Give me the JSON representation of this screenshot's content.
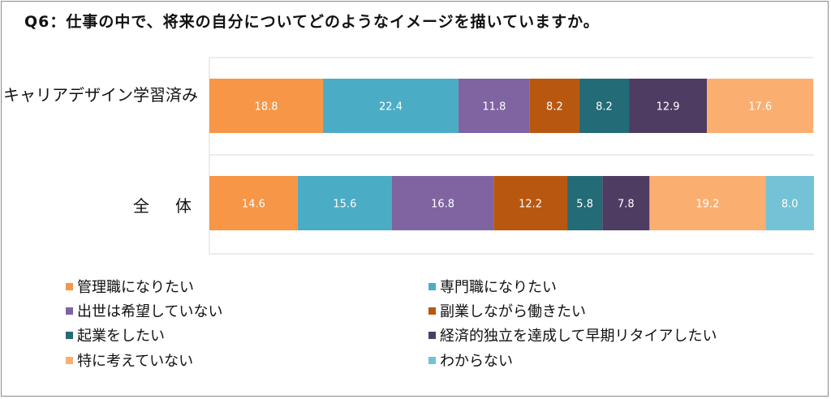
{
  "title": "Q6：仕事の中で、将来の自分についてどのようなイメージを描いていますか。",
  "chart_data": {
    "type": "bar",
    "orientation": "horizontal",
    "stacked": true,
    "categories": [
      "キャリアデザイン学習済み",
      "全　体"
    ],
    "xlim": [
      0,
      100
    ],
    "grid": true,
    "legend_position": "bottom",
    "series": [
      {
        "name": "管理職になりたい",
        "color": "#F79646",
        "values": [
          18.8,
          14.6
        ]
      },
      {
        "name": "専門職になりたい",
        "color": "#4BACC6",
        "values": [
          22.4,
          15.6
        ]
      },
      {
        "name": "出世は希望していない",
        "color": "#8064A2",
        "values": [
          11.8,
          16.8
        ]
      },
      {
        "name": "副業しながら働きたい",
        "color": "#B85810",
        "values": [
          8.2,
          12.2
        ]
      },
      {
        "name": "起業をしたい",
        "color": "#236B76",
        "values": [
          8.2,
          5.8
        ]
      },
      {
        "name": "経済的独立を達成して早期リタイアしたい",
        "color": "#4F3C63",
        "values": [
          12.9,
          7.8
        ]
      },
      {
        "name": "特に考えていない",
        "color": "#FAAF71",
        "values": [
          17.6,
          19.2
        ]
      },
      {
        "name": "わからない",
        "color": "#74C2D6",
        "values": [
          0,
          8.0
        ]
      }
    ],
    "value_labels": [
      [
        "18.8",
        "22.4",
        "11.8",
        "8.2",
        "8.2",
        "12.9",
        "17.6",
        ""
      ],
      [
        "14.6",
        "15.6",
        "16.8",
        "12.2",
        "5.8",
        "7.8",
        "19.2",
        "8.0"
      ]
    ]
  }
}
